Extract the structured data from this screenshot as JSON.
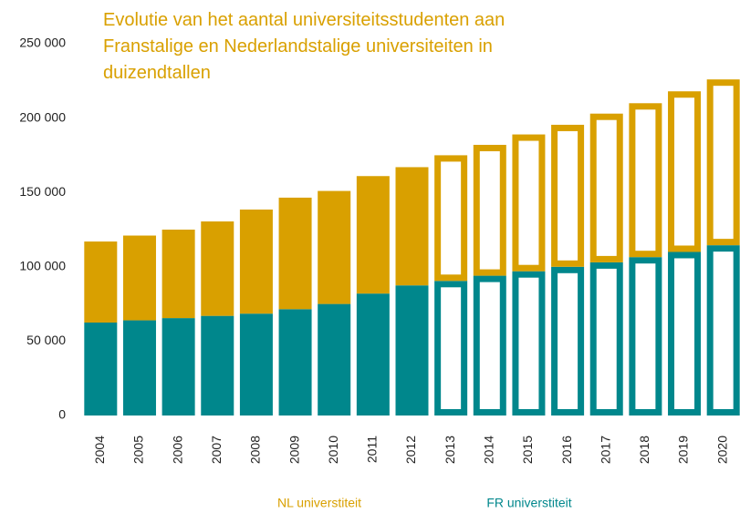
{
  "chart_data": {
    "type": "stacked_bar",
    "title": "Evolutie van het aantal universiteitsstudenten aan Franstalige en Nederlandstalige universiteiten in duizendtallen",
    "categories": [
      "2004",
      "2005",
      "2006",
      "2007",
      "2008",
      "2009",
      "2010",
      "2011",
      "2012",
      "2013",
      "2014",
      "2015",
      "2016",
      "2017",
      "2018",
      "2019",
      "2020"
    ],
    "series": [
      {
        "name": "FR universtiteit",
        "color": "#00878c",
        "values": [
          62500,
          64000,
          65500,
          67000,
          68500,
          71500,
          75000,
          82000,
          87500,
          90500,
          94000,
          97000,
          100000,
          103000,
          106500,
          110000,
          114500
        ]
      },
      {
        "name": "NL universtiteit",
        "color": "#d9a000",
        "values": [
          54500,
          57000,
          59500,
          63500,
          70000,
          75000,
          76000,
          79000,
          79500,
          84500,
          88000,
          92000,
          95500,
          100000,
          103500,
          108000,
          111500
        ]
      }
    ],
    "outline_from": "2013",
    "ylim": [
      0,
      250000
    ],
    "yticks": [
      0,
      {
        "value": 50000,
        "label": "50 000"
      },
      {
        "value": 100000,
        "label": "100 000"
      },
      {
        "value": 150000,
        "label": "150 000"
      },
      {
        "value": 200000,
        "label": "200 000"
      },
      {
        "value": 250000,
        "label": "250 000"
      }
    ],
    "grid": false
  }
}
